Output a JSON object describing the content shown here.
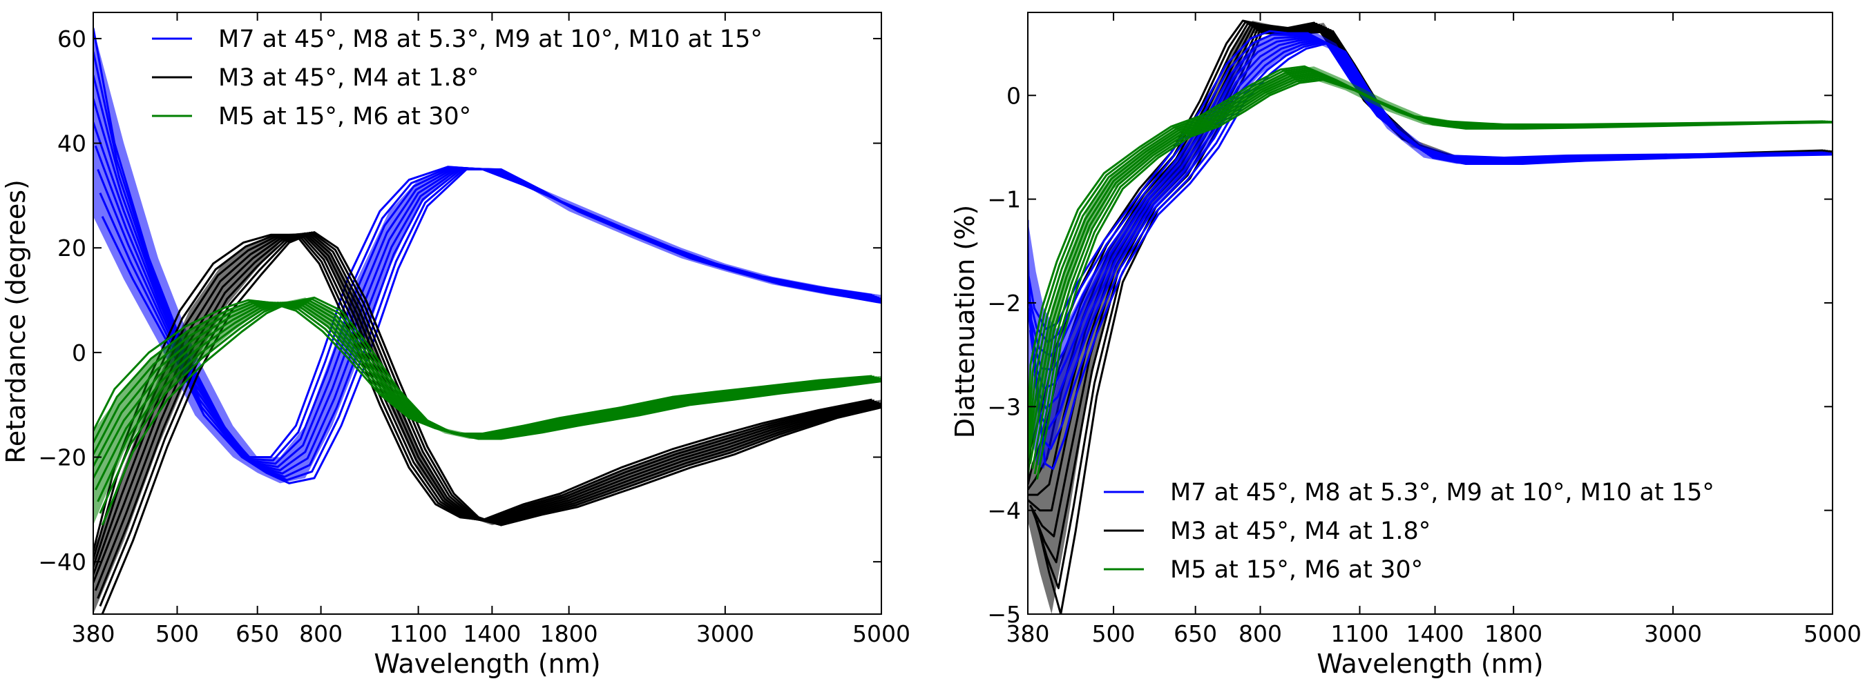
{
  "chart_data": [
    {
      "type": "line",
      "xlabel": "Wavelength (nm)",
      "ylabel": "Retardance (degrees)",
      "xscale": "log",
      "xlim": [
        380,
        5000
      ],
      "ylim": [
        -50,
        65
      ],
      "xticks": [
        380,
        500,
        650,
        800,
        1100,
        1400,
        1800,
        3000,
        5000
      ],
      "xtick_labels": [
        "380",
        "500",
        "650",
        "800",
        "1100",
        "1400",
        "1800",
        "3000",
        "5000"
      ],
      "yticks": [
        60,
        40,
        20,
        0,
        -20,
        -40
      ],
      "ytick_labels": [
        "60",
        "40",
        "20",
        "0",
        "−20",
        "−40"
      ],
      "legend_position": "top-center",
      "legend": [
        {
          "label": "M7 at 45°,  M8 at 5.3°,  M9 at 10°,  M10 at 15°",
          "color": "#0000ff"
        },
        {
          "label": "M3 at 45°,  M4 at 1.8°",
          "color": "#000000"
        },
        {
          "label": "M5 at 15°,  M6 at 30°",
          "color": "#007f00"
        }
      ],
      "series": [
        {
          "name": "blue",
          "color": "#0000ff",
          "x": [
            380,
            420,
            470,
            530,
            600,
            650,
            700,
            760,
            830,
            900,
            1000,
            1100,
            1250,
            1400,
            1600,
            1800,
            2200,
            2600,
            3000,
            3500,
            4200,
            5000
          ],
          "y_upper": [
            62,
            40,
            18,
            0,
            -14,
            -20,
            -20,
            -14,
            0,
            14,
            27,
            33,
            35.5,
            35,
            32,
            29,
            24,
            20,
            17,
            14.5,
            12.5,
            11
          ],
          "y_lower": [
            26,
            14,
            2,
            -12,
            -20,
            -23,
            -25,
            -24,
            -14,
            -2,
            16,
            28,
            35,
            35,
            31,
            27,
            22,
            18,
            15.5,
            13,
            11,
            9.5
          ]
        },
        {
          "name": "black",
          "color": "#000000",
          "x": [
            380,
            420,
            470,
            520,
            580,
            640,
            700,
            760,
            820,
            900,
            1000,
            1100,
            1200,
            1300,
            1400,
            1600,
            1800,
            2200,
            2600,
            3000,
            3500,
            4200,
            5000
          ],
          "y_upper": [
            -38,
            -22,
            -5,
            8,
            17,
            21,
            22.5,
            22.5,
            17,
            5,
            -10,
            -22,
            -29,
            -31.5,
            -32,
            -29,
            -27,
            -22,
            -18.5,
            -16,
            -13.5,
            -11,
            -9
          ],
          "y_lower": [
            -50,
            -36,
            -18,
            -4,
            8,
            15,
            21,
            23,
            20,
            10,
            -5,
            -18,
            -27,
            -31.5,
            -33,
            -31,
            -29.5,
            -25.5,
            -22,
            -19.5,
            -16,
            -12.5,
            -10.5
          ]
        },
        {
          "name": "green",
          "color": "#007f00",
          "x": [
            380,
            420,
            470,
            530,
            600,
            650,
            700,
            760,
            830,
            900,
            1000,
            1100,
            1200,
            1300,
            1400,
            1600,
            1800,
            2200,
            2600,
            3000,
            3500,
            4200,
            5000
          ],
          "y_upper": [
            -15,
            -7,
            0,
            5,
            8.5,
            10,
            9.5,
            8,
            4,
            -1,
            -8,
            -12.5,
            -14.5,
            -15.5,
            -15.5,
            -14,
            -12.5,
            -10.5,
            -8.5,
            -7.5,
            -6.5,
            -5.3,
            -4.5
          ],
          "y_lower": [
            -33,
            -19,
            -9,
            -2,
            4,
            7.5,
            9.5,
            10.5,
            8,
            2,
            -7,
            -13,
            -15.5,
            -16.5,
            -16.5,
            -15.3,
            -14,
            -12,
            -10,
            -9,
            -7.8,
            -6.6,
            -5.5
          ]
        }
      ]
    },
    {
      "type": "line",
      "xlabel": "Wavelength (nm)",
      "ylabel": "Diattenuation (%)",
      "xscale": "log",
      "xlim": [
        380,
        5000
      ],
      "ylim": [
        -5,
        0.8
      ],
      "xticks": [
        380,
        500,
        650,
        800,
        1100,
        1400,
        1800,
        3000,
        5000
      ],
      "xtick_labels": [
        "380",
        "500",
        "650",
        "800",
        "1100",
        "1400",
        "1800",
        "3000",
        "5000"
      ],
      "yticks": [
        0,
        -1,
        -2,
        -3,
        -4,
        -5
      ],
      "ytick_labels": [
        "0",
        "−1",
        "−2",
        "−3",
        "−4",
        "−5"
      ],
      "legend_position": "lower-right",
      "legend": [
        {
          "label": "M7 at 45°,  M8 at 5.3°,  M9 at 10°,  M10 at 15°",
          "color": "#0000ff"
        },
        {
          "label": "M3 at 45°,  M4 at 1.8°",
          "color": "#000000"
        },
        {
          "label": "M5 at 15°,  M6 at 30°",
          "color": "#007f00"
        }
      ],
      "series": [
        {
          "name": "black",
          "color": "#000000",
          "x": [
            380,
            395,
            410,
            430,
            460,
            500,
            560,
            620,
            680,
            740,
            780,
            830,
            900,
            980,
            1050,
            1150,
            1300,
            1500,
            1800,
            2200,
            3000,
            4000,
            5000
          ],
          "y_upper": [
            -3.7,
            -3.4,
            -3.0,
            -2.4,
            -1.9,
            -1.4,
            -0.9,
            -0.55,
            -0.05,
            0.5,
            0.72,
            0.68,
            0.65,
            0.7,
            0.4,
            -0.05,
            -0.42,
            -0.58,
            -0.61,
            -0.6,
            -0.58,
            -0.55,
            -0.53
          ],
          "y_lower": [
            -4.1,
            -4.6,
            -5.0,
            -4.2,
            -2.9,
            -1.8,
            -1.1,
            -0.8,
            -0.3,
            0.2,
            0.6,
            0.6,
            0.6,
            0.62,
            0.3,
            -0.15,
            -0.5,
            -0.62,
            -0.63,
            -0.62,
            -0.6,
            -0.57,
            -0.55
          ]
        },
        {
          "name": "blue",
          "color": "#0000ff",
          "x": [
            380,
            390,
            400,
            415,
            430,
            460,
            500,
            560,
            620,
            680,
            740,
            800,
            850,
            900,
            960,
            1020,
            1100,
            1200,
            1350,
            1500,
            1800,
            2200,
            3000,
            4000,
            5000
          ],
          "y_upper": [
            -1.2,
            -1.7,
            -2.05,
            -2.25,
            -2.2,
            -1.8,
            -1.4,
            -0.95,
            -0.55,
            -0.15,
            0.3,
            0.55,
            0.62,
            0.6,
            0.6,
            0.5,
            0.15,
            -0.2,
            -0.48,
            -0.58,
            -0.6,
            -0.58,
            -0.57,
            -0.56,
            -0.55
          ],
          "y_lower": [
            -2.9,
            -3.55,
            -3.6,
            -3.3,
            -2.9,
            -2.3,
            -1.7,
            -1.15,
            -0.85,
            -0.5,
            -0.05,
            0.2,
            0.35,
            0.45,
            0.5,
            0.42,
            0.05,
            -0.32,
            -0.6,
            -0.66,
            -0.66,
            -0.63,
            -0.6,
            -0.58,
            -0.57
          ]
        },
        {
          "name": "green",
          "color": "#007f00",
          "x": [
            380,
            395,
            410,
            430,
            460,
            500,
            560,
            620,
            680,
            740,
            800,
            880,
            950,
            1050,
            1200,
            1350,
            1500,
            1800,
            2200,
            3000,
            4000,
            5000
          ],
          "y_upper": [
            -3.3,
            -2.6,
            -2.05,
            -1.6,
            -1.1,
            -0.75,
            -0.5,
            -0.3,
            -0.2,
            -0.05,
            0.1,
            0.25,
            0.28,
            0.15,
            -0.05,
            -0.2,
            -0.25,
            -0.28,
            -0.28,
            -0.27,
            -0.26,
            -0.25
          ],
          "y_lower": [
            -3.7,
            -3.1,
            -2.4,
            -1.9,
            -1.35,
            -0.9,
            -0.6,
            -0.4,
            -0.3,
            -0.15,
            0.0,
            0.12,
            0.15,
            0.05,
            -0.15,
            -0.28,
            -0.32,
            -0.32,
            -0.31,
            -0.29,
            -0.27,
            -0.26
          ]
        }
      ]
    }
  ]
}
